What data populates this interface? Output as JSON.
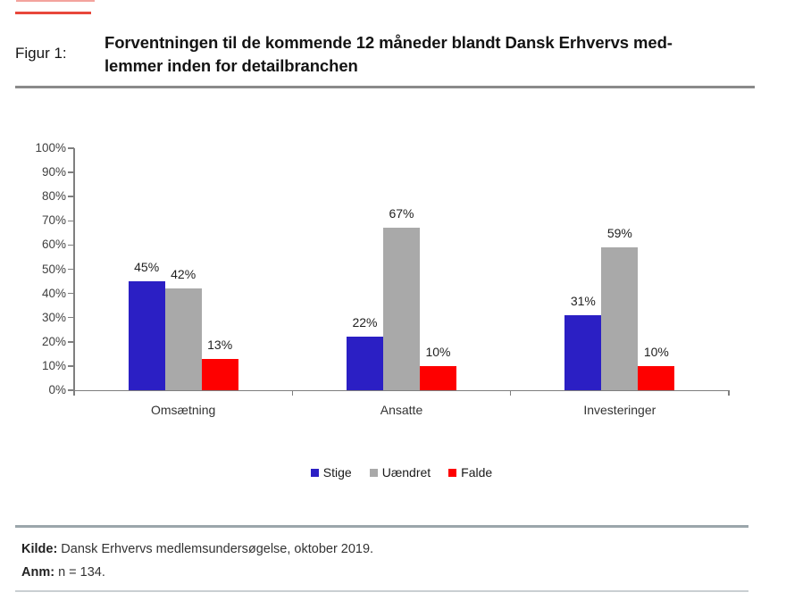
{
  "page": {
    "figure_label": "Figur 1:",
    "title_line1": "Forventningen til de kommende 12 måneder blandt Dansk Erhvervs med-",
    "title_line2": "lemmer inden for detailbranchen"
  },
  "chart_data": {
    "type": "bar",
    "categories": [
      "Omsætning",
      "Ansatte",
      "Investeringer"
    ],
    "series": [
      {
        "name": "Stige",
        "color": "#2B1FC4",
        "values": [
          45,
          22,
          31
        ]
      },
      {
        "name": "Uændret",
        "color": "#A9A9A9",
        "values": [
          42,
          67,
          59
        ]
      },
      {
        "name": "Falde",
        "color": "#FE0000",
        "values": [
          13,
          10,
          10
        ]
      }
    ],
    "data_labels": [
      "45%",
      "42%",
      "13%",
      "22%",
      "67%",
      "10%",
      "31%",
      "59%",
      "10%"
    ],
    "value_suffix": "%",
    "xlabel": "",
    "ylabel": "",
    "ylim": [
      0,
      100
    ],
    "ytick_step": 10,
    "ytick_labels": [
      "0%",
      "10%",
      "20%",
      "30%",
      "40%",
      "50%",
      "60%",
      "70%",
      "80%",
      "90%",
      "100%"
    ],
    "grid": false,
    "legend_position": "bottom",
    "legend_entries": [
      "Stige",
      "Uændret",
      "Falde"
    ]
  },
  "footer": {
    "kilde_label": "Kilde:",
    "kilde_text": " Dansk Erhvervs medlemsundersøgelse, oktober 2019.",
    "anm_label": "Anm:",
    "anm_text": " n = 134."
  },
  "colors": {
    "accent_red": "#E8473B",
    "axis": "#7F7F7F"
  }
}
